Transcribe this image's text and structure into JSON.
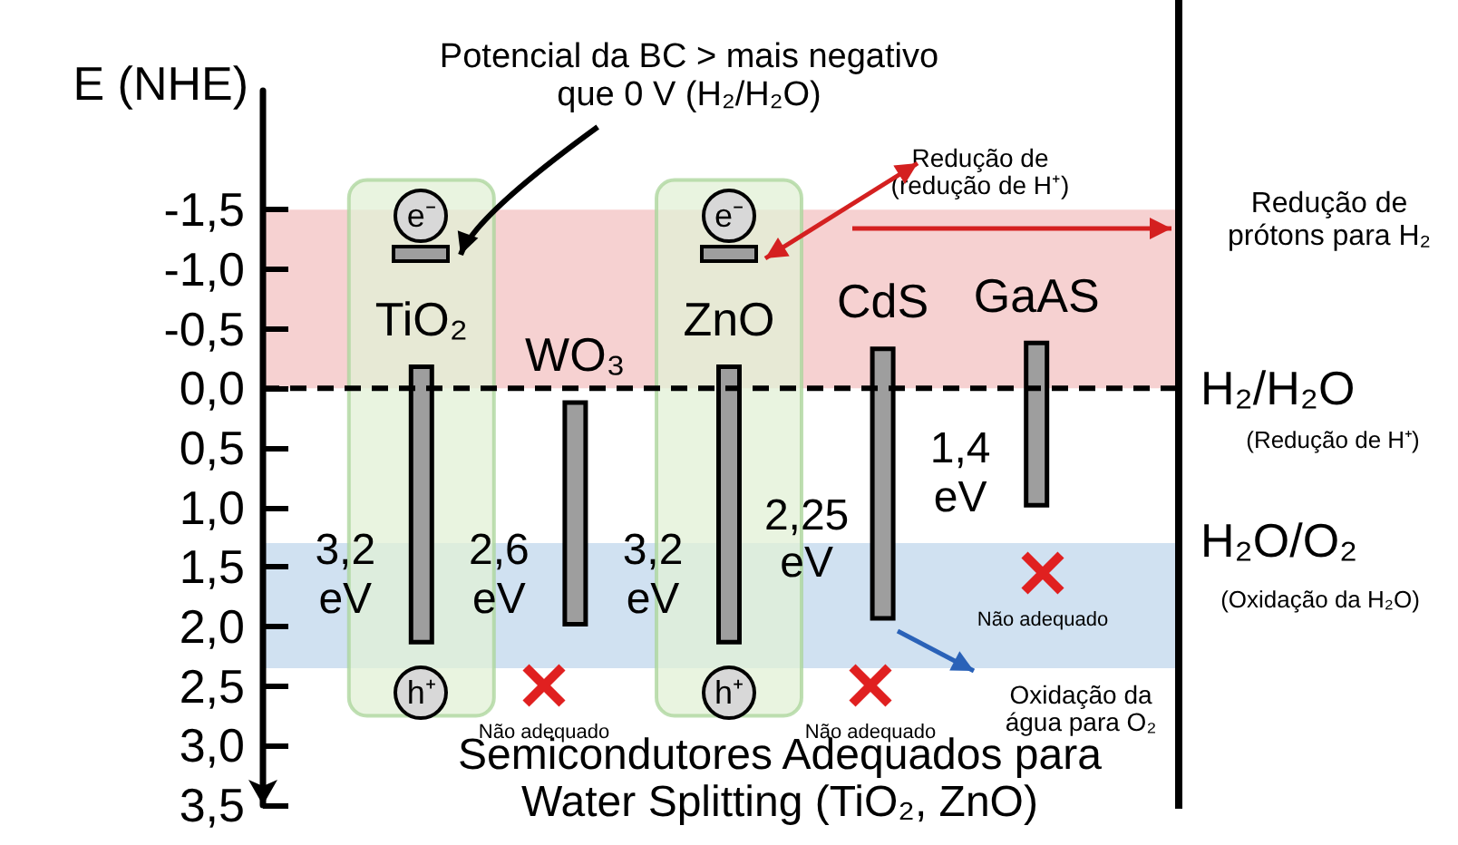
{
  "chart_data": {
    "type": "bar",
    "ylabel": "E (NHE)",
    "categories": [
      "TiO₂",
      "WO₃",
      "ZnO",
      "CdS",
      "GaAS"
    ],
    "base": [
      -0.2,
      0.1,
      -0.2,
      -0.35,
      -0.4
    ],
    "values": [
      2.35,
      1.9,
      2.35,
      2.3,
      1.4
    ],
    "color": "#9e9e9e",
    "ylim": [
      3.5,
      -2.5
    ],
    "yticks": [
      {
        "value": -1.5,
        "label": "-1,5"
      },
      {
        "value": -1.0,
        "label": "-1,0"
      },
      {
        "value": -0.5,
        "label": "-0,5"
      },
      {
        "value": 0,
        "label": "0,0"
      },
      {
        "value": 0.5,
        "label": "0,5"
      },
      {
        "value": 1.0,
        "label": "1,0"
      },
      {
        "value": 1.5,
        "label": "1,5"
      },
      {
        "value": 2.0,
        "label": "2,0"
      },
      {
        "value": 2.5,
        "label": "2,5"
      },
      {
        "value": 3.0,
        "label": "3,0"
      },
      {
        "value": 3.5,
        "label": "3,5"
      }
    ],
    "ref_lines": [
      {
        "axis": "y",
        "value": 0,
        "label": "H₂/H₂O",
        "color": "#000000",
        "line_style": "dashed"
      }
    ],
    "bands": [
      {
        "axis": "y",
        "from": -1.5,
        "to": 0,
        "color": "#f5c9c9"
      },
      {
        "axis": "y",
        "from": 1.3,
        "to": 2.35,
        "color": "#c8dcef"
      },
      {
        "axis": "x",
        "from": "TiO₂",
        "to": "TiO₂",
        "color": "#e2f0d6"
      },
      {
        "axis": "x",
        "from": "ZnO",
        "to": "ZnO",
        "color": "#e2f0d6"
      }
    ],
    "annotations": [
      "Potencial da BC > mais negativo que 0 V (H₂/H₂O)",
      "Redução de (redução de H⁺)",
      "Redução de prótons para H₂",
      "(Redução de H⁺)",
      "(Oxidação da H₂O)",
      "Oxidação da água para O₂",
      "Semicondutores Adequados para Water Splitting (TiO₂, ZnO)",
      "Não adequado",
      "Não adequado",
      "Não adequado",
      "H₂O/O₂",
      {
        "text": "e⁻",
        "x": "TiO₂",
        "y": -1.45
      },
      {
        "text": "e⁻",
        "x": "ZnO",
        "y": -1.45
      },
      {
        "text": "h⁺",
        "x": "TiO₂",
        "y": 2.55
      },
      {
        "text": "h⁺",
        "x": "ZnO",
        "y": 2.55
      },
      {
        "text": "3,2 eV",
        "x": "TiO₂",
        "y": 1.6
      },
      {
        "text": "2,6 eV",
        "x": "WO₃",
        "y": 1.6
      },
      {
        "text": "3,2 eV",
        "x": "ZnO",
        "y": 1.6
      },
      {
        "text": "2,25 eV",
        "x": "CdS",
        "y": 1.3
      },
      {
        "text": "1,4 eV",
        "x": "GaAS",
        "y": 0.75
      }
    ]
  }
}
